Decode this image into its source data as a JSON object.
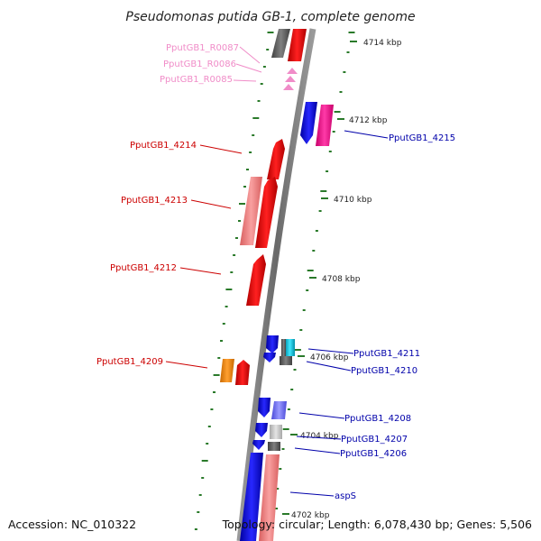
{
  "title": "Pseudomonas putida GB-1, complete genome",
  "footer": {
    "accession": "Accession: NC_010322",
    "summary": "Topology: circular; Length: 6,078,430 bp; Genes: 5,506"
  },
  "kbp_ticks": [
    "4714 kbp",
    "4712 kbp",
    "4710 kbp",
    "4708 kbp",
    "4706 kbp",
    "4704 kbp",
    "4702 kbp"
  ],
  "labels_left": [
    {
      "text": "PputGB1_R0087",
      "color": "#f08cc8"
    },
    {
      "text": "PputGB1_R0086",
      "color": "#f08cc8"
    },
    {
      "text": "PputGB1_R0085",
      "color": "#f08cc8"
    },
    {
      "text": "PputGB1_4214",
      "color": "#cc0000"
    },
    {
      "text": "PputGB1_4213",
      "color": "#cc0000"
    },
    {
      "text": "PputGB1_4212",
      "color": "#cc0000"
    },
    {
      "text": "PputGB1_4209",
      "color": "#cc0000"
    }
  ],
  "labels_right": [
    {
      "text": "PputGB1_4215",
      "color": "#0000aa"
    },
    {
      "text": "PputGB1_4211",
      "color": "#0000aa"
    },
    {
      "text": "PputGB1_4210",
      "color": "#0000aa"
    },
    {
      "text": "PputGB1_4208",
      "color": "#0000aa"
    },
    {
      "text": "PputGB1_4207",
      "color": "#0000aa"
    },
    {
      "text": "PputGB1_4206",
      "color": "#0000aa"
    },
    {
      "text": "aspS",
      "color": "#0000aa"
    }
  ],
  "colors": {
    "backbone": "#8a8a8a",
    "tick": "#2a7a2a",
    "forward_cds": "#ff0000",
    "forward_cds_light": "#f08080",
    "reverse_cds": "#0000ee",
    "reverse_cds_light": "#7070ff",
    "rna": "#f08cc8",
    "accent_orange": "#ff8c00",
    "accent_cyan": "#00c8e0",
    "accent_magenta": "#ff1493",
    "dark_gray": "#555555",
    "light_gray": "#c8c8c8"
  }
}
